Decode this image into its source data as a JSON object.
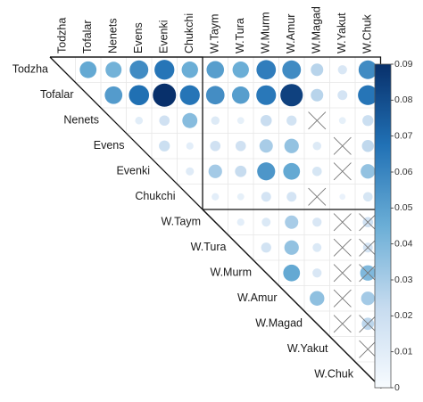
{
  "chart_data": {
    "type": "heatmap",
    "subtype": "correlation-matrix-bubble",
    "labels": [
      "Todzha",
      "Tofalar",
      "Nenets",
      "Evens",
      "Evenki",
      "Chukchi",
      "W.Taym",
      "W.Tura",
      "W.Murm",
      "W.Amur",
      "W.Magad",
      "W.Yakut",
      "W.Chuk"
    ],
    "colorbar": {
      "min": 0,
      "max": 0.09,
      "ticks": [
        "0",
        "0.01",
        "0.02",
        "0.03",
        "0.04",
        "0.05",
        "0.06",
        "0.07",
        "0.08",
        "0.09"
      ],
      "color_low": "#f7fbff",
      "color_high": "#08306b"
    },
    "cross_marker": "not significant",
    "cells": [
      {
        "row": "Todzha",
        "col": "Tofalar",
        "value": 0.047
      },
      {
        "row": "Todzha",
        "col": "Nenets",
        "value": 0.043
      },
      {
        "row": "Todzha",
        "col": "Evens",
        "value": 0.058
      },
      {
        "row": "Todzha",
        "col": "Evenki",
        "value": 0.066
      },
      {
        "row": "Todzha",
        "col": "Chukchi",
        "value": 0.045
      },
      {
        "row": "Todzha",
        "col": "W.Taym",
        "value": 0.051
      },
      {
        "row": "Todzha",
        "col": "W.Tura",
        "value": 0.045
      },
      {
        "row": "Todzha",
        "col": "W.Murm",
        "value": 0.063
      },
      {
        "row": "Todzha",
        "col": "W.Amur",
        "value": 0.058
      },
      {
        "row": "Todzha",
        "col": "W.Magad",
        "value": 0.026
      },
      {
        "row": "Todzha",
        "col": "W.Yakut",
        "value": 0.014
      },
      {
        "row": "Todzha",
        "col": "W.Chuk",
        "value": 0.058
      },
      {
        "row": "Tofalar",
        "col": "Nenets",
        "value": 0.052
      },
      {
        "row": "Tofalar",
        "col": "Evens",
        "value": 0.068
      },
      {
        "row": "Tofalar",
        "col": "Evenki",
        "value": 0.09
      },
      {
        "row": "Tofalar",
        "col": "Chukchi",
        "value": 0.066
      },
      {
        "row": "Tofalar",
        "col": "W.Taym",
        "value": 0.057
      },
      {
        "row": "Tofalar",
        "col": "W.Tura",
        "value": 0.051
      },
      {
        "row": "Tofalar",
        "col": "W.Murm",
        "value": 0.065
      },
      {
        "row": "Tofalar",
        "col": "W.Amur",
        "value": 0.084
      },
      {
        "row": "Tofalar",
        "col": "W.Magad",
        "value": 0.026
      },
      {
        "row": "Tofalar",
        "col": "W.Yakut",
        "value": 0.016
      },
      {
        "row": "Tofalar",
        "col": "W.Chuk",
        "value": 0.066
      },
      {
        "row": "Nenets",
        "col": "Evens",
        "value": 0.01
      },
      {
        "row": "Nenets",
        "col": "Evenki",
        "value": 0.018
      },
      {
        "row": "Nenets",
        "col": "Chukchi",
        "value": 0.038
      },
      {
        "row": "Nenets",
        "col": "W.Taym",
        "value": 0.012
      },
      {
        "row": "Nenets",
        "col": "W.Tura",
        "value": 0.008
      },
      {
        "row": "Nenets",
        "col": "W.Murm",
        "value": 0.021
      },
      {
        "row": "Nenets",
        "col": "W.Amur",
        "value": 0.017
      },
      {
        "row": "Nenets",
        "col": "W.Magad",
        "value": null,
        "cross": true
      },
      {
        "row": "Nenets",
        "col": "W.Yakut",
        "value": 0.008
      },
      {
        "row": "Nenets",
        "col": "W.Chuk",
        "value": 0.02
      },
      {
        "row": "Evens",
        "col": "Evenki",
        "value": 0.02
      },
      {
        "row": "Evens",
        "col": "Chukchi",
        "value": 0.009
      },
      {
        "row": "Evens",
        "col": "W.Taym",
        "value": 0.018
      },
      {
        "row": "Evens",
        "col": "W.Tura",
        "value": 0.018
      },
      {
        "row": "Evens",
        "col": "W.Murm",
        "value": 0.03
      },
      {
        "row": "Evens",
        "col": "W.Amur",
        "value": 0.035
      },
      {
        "row": "Evens",
        "col": "W.Magad",
        "value": 0.012
      },
      {
        "row": "Evens",
        "col": "W.Yakut",
        "value": null,
        "cross": true
      },
      {
        "row": "Evens",
        "col": "W.Chuk",
        "value": 0.024
      },
      {
        "row": "Evenki",
        "col": "Chukchi",
        "value": 0.011
      },
      {
        "row": "Evenki",
        "col": "W.Taym",
        "value": 0.031
      },
      {
        "row": "Evenki",
        "col": "W.Tura",
        "value": 0.022
      },
      {
        "row": "Evenki",
        "col": "W.Murm",
        "value": 0.054
      },
      {
        "row": "Evenki",
        "col": "W.Amur",
        "value": 0.047
      },
      {
        "row": "Evenki",
        "col": "W.Magad",
        "value": 0.015
      },
      {
        "row": "Evenki",
        "col": "W.Yakut",
        "value": null,
        "cross": true
      },
      {
        "row": "Evenki",
        "col": "W.Chuk",
        "value": 0.035
      },
      {
        "row": "Chukchi",
        "col": "W.Taym",
        "value": 0.009
      },
      {
        "row": "Chukchi",
        "col": "W.Tura",
        "value": 0.008
      },
      {
        "row": "Chukchi",
        "col": "W.Murm",
        "value": 0.016
      },
      {
        "row": "Chukchi",
        "col": "W.Amur",
        "value": 0.016
      },
      {
        "row": "Chukchi",
        "col": "W.Magad",
        "value": null,
        "cross": true
      },
      {
        "row": "Chukchi",
        "col": "W.Yakut",
        "value": 0.006
      },
      {
        "row": "Chukchi",
        "col": "W.Chuk",
        "value": 0.015
      },
      {
        "row": "W.Taym",
        "col": "W.Tura",
        "value": 0.009
      },
      {
        "row": "W.Taym",
        "col": "W.Murm",
        "value": 0.013
      },
      {
        "row": "W.Taym",
        "col": "W.Amur",
        "value": 0.03
      },
      {
        "row": "W.Taym",
        "col": "W.Magad",
        "value": 0.014
      },
      {
        "row": "W.Taym",
        "col": "W.Yakut",
        "value": null,
        "cross": true
      },
      {
        "row": "W.Taym",
        "col": "W.Chuk",
        "value": 0.018,
        "cross": true
      },
      {
        "row": "W.Tura",
        "col": "W.Murm",
        "value": 0.017
      },
      {
        "row": "W.Tura",
        "col": "W.Amur",
        "value": 0.035
      },
      {
        "row": "W.Tura",
        "col": "W.Magad",
        "value": 0.013
      },
      {
        "row": "W.Tura",
        "col": "W.Yakut",
        "value": null,
        "cross": true
      },
      {
        "row": "W.Tura",
        "col": "W.Chuk",
        "value": 0.016,
        "cross": true
      },
      {
        "row": "W.Murm",
        "col": "W.Amur",
        "value": 0.047
      },
      {
        "row": "W.Murm",
        "col": "W.Magad",
        "value": 0.014
      },
      {
        "row": "W.Murm",
        "col": "W.Yakut",
        "value": null,
        "cross": true
      },
      {
        "row": "W.Murm",
        "col": "W.Chuk",
        "value": 0.04,
        "cross": true
      },
      {
        "row": "W.Amur",
        "col": "W.Magad",
        "value": 0.036
      },
      {
        "row": "W.Amur",
        "col": "W.Yakut",
        "value": null,
        "cross": true
      },
      {
        "row": "W.Amur",
        "col": "W.Chuk",
        "value": 0.031
      },
      {
        "row": "W.Magad",
        "col": "W.Yakut",
        "value": null,
        "cross": true
      },
      {
        "row": "W.Magad",
        "col": "W.Chuk",
        "value": 0.025,
        "cross": true
      },
      {
        "row": "W.Yakut",
        "col": "W.Chuk",
        "value": null,
        "cross": true
      }
    ],
    "title": "",
    "xlabel": "",
    "ylabel": ""
  }
}
